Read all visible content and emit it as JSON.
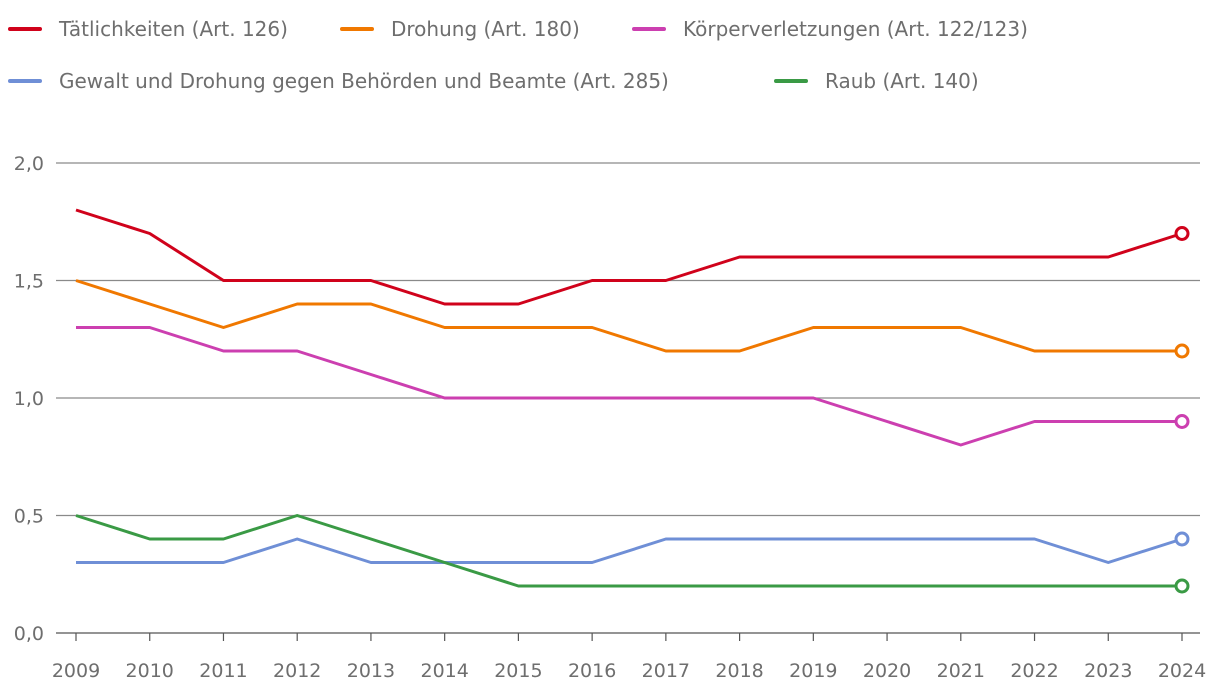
{
  "chart_data": {
    "type": "line",
    "title": "",
    "xlabel": "",
    "ylabel": "",
    "x": [
      2009,
      2010,
      2011,
      2012,
      2013,
      2014,
      2015,
      2016,
      2017,
      2018,
      2019,
      2020,
      2021,
      2022,
      2023,
      2024
    ],
    "ylim": [
      0,
      2
    ],
    "yticks": [
      0,
      0.5,
      1.0,
      1.5,
      2.0
    ],
    "ytick_labels": [
      "0,0",
      "0,5",
      "1,0",
      "1,5",
      "2,0"
    ],
    "grid": true,
    "legend_position": "top",
    "series": [
      {
        "name": "Tätlichkeiten (Art. 126)",
        "color": "#d0021b",
        "values": [
          1.8,
          1.7,
          1.5,
          1.5,
          1.5,
          1.4,
          1.4,
          1.5,
          1.5,
          1.6,
          1.6,
          1.6,
          1.6,
          1.6,
          1.6,
          1.7
        ]
      },
      {
        "name": "Drohung (Art. 180)",
        "color": "#f07800",
        "values": [
          1.5,
          1.4,
          1.3,
          1.4,
          1.4,
          1.3,
          1.3,
          1.3,
          1.2,
          1.2,
          1.3,
          1.3,
          1.3,
          1.2,
          1.2,
          1.2
        ]
      },
      {
        "name": "Körperverletzungen (Art. 122/123)",
        "color": "#cc3fb0",
        "values": [
          1.3,
          1.3,
          1.2,
          1.2,
          1.1,
          1.0,
          1.0,
          1.0,
          1.0,
          1.0,
          1.0,
          0.9,
          0.8,
          0.9,
          0.9,
          0.9
        ]
      },
      {
        "name": "Gewalt und Drohung gegen Behörden und Beamte (Art. 285)",
        "color": "#6f8fd6",
        "values": [
          0.3,
          0.3,
          0.3,
          0.4,
          0.3,
          0.3,
          0.3,
          0.3,
          0.4,
          0.4,
          0.4,
          0.4,
          0.4,
          0.4,
          0.3,
          0.4
        ]
      },
      {
        "name": "Raub (Art. 140)",
        "color": "#3a9a45",
        "values": [
          0.5,
          0.4,
          0.4,
          0.5,
          0.4,
          0.3,
          0.2,
          0.2,
          0.2,
          0.2,
          0.2,
          0.2,
          0.2,
          0.2,
          0.2,
          0.2
        ]
      }
    ]
  }
}
